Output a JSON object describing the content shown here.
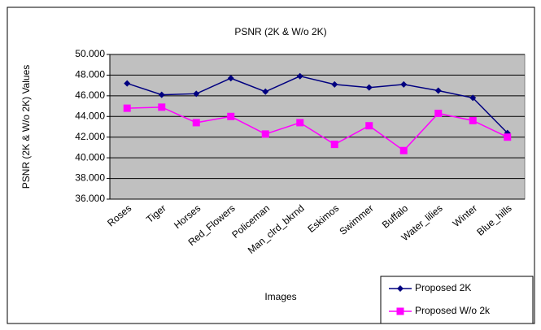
{
  "chart_data": {
    "type": "line",
    "title": "PSNR (2K & W/o 2K)",
    "y_label": "PSNR (2K & W/o 2K) Values",
    "x_label": "Images",
    "categories": [
      "Roses",
      "Tiger",
      "Horses",
      "Red_Flowers",
      "Policeman",
      "Man_clrd_bkrnd",
      "Eskimos",
      "Swimmer",
      "Buffalo",
      "Water_lilies",
      "Winter",
      "Blue_hills"
    ],
    "series": [
      {
        "name": "Proposed  2K",
        "color": "#000080",
        "marker": "diamond",
        "values": [
          47.2,
          46.1,
          46.2,
          47.7,
          46.4,
          47.9,
          47.1,
          46.8,
          47.1,
          46.5,
          45.8,
          42.4
        ]
      },
      {
        "name": "Proposed W/o 2k",
        "color": "#ff00ff",
        "marker": "square",
        "values": [
          44.8,
          44.9,
          43.4,
          44.0,
          42.3,
          43.4,
          41.3,
          43.1,
          40.7,
          44.3,
          43.6,
          42.0
        ]
      }
    ],
    "ylim": [
      36,
      50
    ],
    "yticks": [
      {
        "value": 36,
        "label": "36.000"
      },
      {
        "value": 38,
        "label": "38.000"
      },
      {
        "value": 40,
        "label": "40.000"
      },
      {
        "value": 42,
        "label": "42.000"
      },
      {
        "value": 44,
        "label": "44.000"
      },
      {
        "value": 46,
        "label": "46.000"
      },
      {
        "value": 48,
        "label": "48.000"
      },
      {
        "value": 50,
        "label": "50.000"
      }
    ],
    "grid": true,
    "legend": "bottom-right",
    "plot_color": "#c0c0c0"
  }
}
